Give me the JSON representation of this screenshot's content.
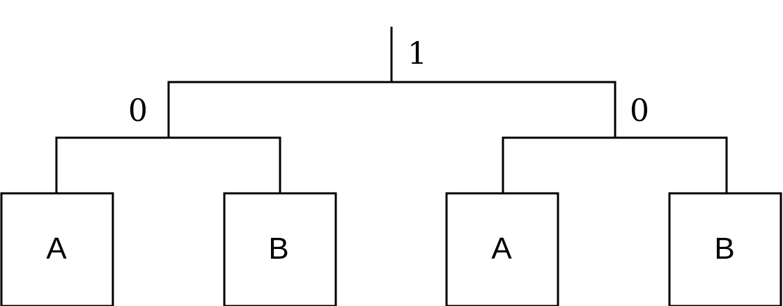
{
  "root_label": "1",
  "left_branch_label": "0",
  "right_branch_label": "0",
  "leaves": [
    {
      "label": "A"
    },
    {
      "label": "B"
    },
    {
      "label": "A"
    },
    {
      "label": "B"
    }
  ]
}
